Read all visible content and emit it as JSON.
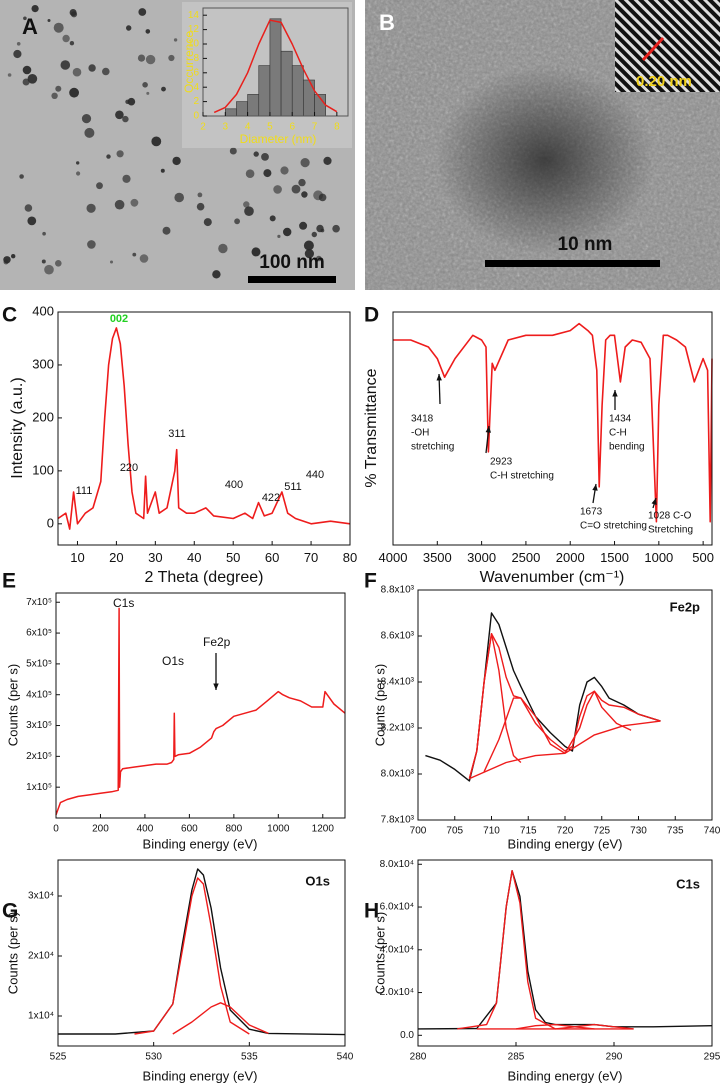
{
  "images": [
    {
      "label": "A",
      "scale_bar": "100 nm"
    },
    {
      "label": "B",
      "scale_bar": "10 nm",
      "lattice": "0.20 nm"
    }
  ],
  "chart_data": [
    {
      "type": "histogram",
      "xlabel": "Diameter (nm)",
      "ylabel": "Occurrence",
      "bins": [
        3,
        3.5,
        4,
        4.5,
        5,
        5.5,
        6,
        6.5,
        7,
        7.5
      ],
      "counts": [
        1,
        2,
        3,
        7,
        13.5,
        9,
        7,
        5,
        3
      ],
      "bar_color": "#7a7a7a",
      "series": [
        {
          "color": "#e8201c",
          "x": [
            2.5,
            3,
            3.5,
            4,
            4.5,
            5,
            5.5,
            6,
            6.5,
            7,
            7.5,
            8
          ],
          "values": [
            0.5,
            1.2,
            3,
            6,
            10,
            13.3,
            13,
            10,
            6.5,
            3.5,
            1.5,
            0.6
          ]
        }
      ],
      "xlim": [
        2,
        8.5
      ],
      "xticks": [
        2,
        3,
        4,
        5,
        6,
        7,
        8
      ],
      "ylim": [
        0,
        15
      ],
      "yticks": [
        0,
        2,
        4,
        6,
        8,
        10,
        12,
        14
      ]
    },
    {
      "type": "line",
      "panel_label": "C",
      "xlabel": "2 Theta (degree)",
      "ylabel": "Intensity (a.u.)",
      "series": [
        {
          "color": "#ee1c1c",
          "x": [
            5,
            7,
            8,
            9,
            10,
            12,
            14,
            16,
            17,
            18,
            19,
            20,
            21,
            22,
            23,
            24,
            25,
            26,
            27,
            27.5,
            28,
            30,
            31,
            33,
            35,
            35.5,
            36,
            38,
            40,
            43,
            45,
            50,
            53,
            55,
            56.5,
            58,
            60,
            62.5,
            64,
            66,
            70,
            75,
            80
          ],
          "values": [
            10,
            20,
            -10,
            60,
            0,
            20,
            30,
            80,
            200,
            300,
            350,
            370,
            340,
            260,
            150,
            60,
            20,
            15,
            10,
            90,
            20,
            60,
            20,
            30,
            100,
            140,
            30,
            20,
            20,
            30,
            15,
            10,
            20,
            10,
            40,
            15,
            20,
            60,
            20,
            10,
            0,
            5,
            0
          ]
        }
      ],
      "annotations": [
        {
          "lines": [
            "002"
          ],
          "color": "#22d022"
        },
        {
          "lines": [
            "111"
          ]
        },
        {
          "lines": [
            "220"
          ]
        },
        {
          "lines": [
            "311"
          ]
        },
        {
          "lines": [
            "400"
          ]
        },
        {
          "lines": [
            "422"
          ]
        },
        {
          "lines": [
            "511"
          ]
        },
        {
          "lines": [
            "440"
          ]
        }
      ],
      "xlim": [
        5,
        80
      ],
      "xticks": [
        10,
        20,
        30,
        40,
        50,
        60,
        70,
        80
      ],
      "ylim": [
        -40,
        400
      ],
      "yticks": [
        0,
        100,
        200,
        300,
        400
      ]
    },
    {
      "type": "line",
      "panel_label": "D",
      "xlabel": "Wavenumber (cm⁻¹)",
      "ylabel": "% Transmittance",
      "series": [
        {
          "color": "#ee1c1c",
          "x": [
            4000,
            3800,
            3600,
            3500,
            3418,
            3300,
            3100,
            3000,
            2950,
            2923,
            2880,
            2850,
            2700,
            2500,
            2200,
            2000,
            1900,
            1800,
            1750,
            1700,
            1673,
            1640,
            1600,
            1550,
            1500,
            1434,
            1380,
            1300,
            1200,
            1100,
            1028,
            1000,
            950,
            900,
            800,
            700,
            600,
            500,
            450,
            420,
            400
          ],
          "values": [
            88,
            88,
            85,
            80,
            72,
            80,
            90,
            88,
            85,
            40,
            78,
            75,
            88,
            90,
            90,
            92,
            95,
            92,
            90,
            75,
            25,
            60,
            88,
            90,
            90,
            70,
            85,
            88,
            87,
            80,
            10,
            60,
            90,
            90,
            88,
            85,
            70,
            80,
            75,
            10,
            80
          ]
        }
      ],
      "annotations": [
        {
          "lines": [
            "3418",
            "-OH",
            "stretching"
          ]
        },
        {
          "lines": [
            "2923",
            "C-H stretching"
          ]
        },
        {
          "lines": [
            "1673",
            "C=O stretching"
          ]
        },
        {
          "lines": [
            "1434",
            "C-H",
            "bending"
          ]
        },
        {
          "lines": [
            "1028 C-O",
            "Stretching"
          ]
        }
      ],
      "xlim": [
        4000,
        400
      ],
      "xticks": [
        4000,
        3500,
        3000,
        2500,
        2000,
        1500,
        1000,
        500
      ],
      "ylim": [
        0,
        100
      ]
    },
    {
      "type": "line",
      "panel_label": "E",
      "xlabel": "Binding energy (eV)",
      "ylabel": "Counts (per s)",
      "series": [
        {
          "color": "#ee1c1c",
          "x": [
            0,
            20,
            50,
            100,
            150,
            200,
            250,
            280,
            284,
            286,
            290,
            300,
            350,
            400,
            450,
            500,
            520,
            530,
            532,
            535,
            550,
            600,
            650,
            700,
            710,
            720,
            750,
            800,
            850,
            900,
            950,
            1000,
            1020,
            1050,
            1100,
            1150,
            1200,
            1210,
            1220,
            1250,
            1300
          ],
          "values": [
            10000,
            50000,
            60000,
            70000,
            75000,
            80000,
            85000,
            90000,
            680000,
            100000,
            150000,
            160000,
            165000,
            170000,
            175000,
            175000,
            180000,
            190000,
            340000,
            200000,
            205000,
            210000,
            230000,
            260000,
            280000,
            290000,
            300000,
            330000,
            340000,
            350000,
            380000,
            410000,
            400000,
            390000,
            380000,
            360000,
            360000,
            410000,
            400000,
            370000,
            340000
          ]
        }
      ],
      "annotations": [
        {
          "lines": [
            "C1s"
          ]
        },
        {
          "lines": [
            "O1s"
          ]
        },
        {
          "lines": [
            "Fe2p"
          ]
        }
      ],
      "xlim": [
        0,
        1300
      ],
      "xticks": [
        0,
        200,
        400,
        600,
        800,
        1000,
        1200
      ],
      "ylim": [
        0,
        730000
      ],
      "yticks": [
        {
          "value": 100000,
          "label": "1x10⁵"
        },
        {
          "value": 200000,
          "label": "2x10⁵"
        },
        {
          "value": 300000,
          "label": "3x10⁵"
        },
        {
          "value": 400000,
          "label": "4x10⁵"
        },
        {
          "value": 500000,
          "label": "5x10⁵"
        },
        {
          "value": 600000,
          "label": "6x10⁵"
        },
        {
          "value": 700000,
          "label": "7x10⁵"
        }
      ]
    },
    {
      "type": "line",
      "panel_label": "F",
      "title": "Fe2p",
      "xlabel": "Binding energy (eV)",
      "ylabel": "Counts (per s)",
      "series": [
        {
          "color": "#111111",
          "x": [
            701,
            703,
            705,
            707,
            708,
            709,
            710,
            711,
            712,
            713,
            714,
            716,
            718,
            720,
            721,
            722,
            723,
            724,
            725,
            726,
            728,
            730,
            733
          ],
          "values": [
            8080,
            8060,
            8020,
            7970,
            8100,
            8400,
            8700,
            8650,
            8550,
            8450,
            8380,
            8250,
            8180,
            8120,
            8100,
            8300,
            8400,
            8420,
            8380,
            8330,
            8300,
            8260,
            8230
          ]
        },
        {
          "color": "#ee1c1c",
          "x": [
            707,
            708,
            709,
            710,
            711,
            712,
            713,
            714,
            716,
            718,
            720,
            721,
            722,
            723,
            724,
            725,
            726,
            728,
            730,
            733
          ],
          "values": [
            7980,
            8100,
            8400,
            8610,
            8550,
            8420,
            8340,
            8330,
            8220,
            8150,
            8100,
            8120,
            8250,
            8340,
            8360,
            8320,
            8300,
            8290,
            8260,
            8230
          ]
        },
        {
          "color": "#ee1c1c",
          "x": [
            707,
            712,
            716,
            720,
            724,
            728,
            733
          ],
          "values": [
            7980,
            8050,
            8080,
            8090,
            8170,
            8210,
            8230
          ]
        },
        {
          "color": "#ee1c1c",
          "x": [
            707,
            708,
            709,
            710,
            711,
            712,
            713,
            714
          ],
          "values": [
            7980,
            8100,
            8400,
            8610,
            8450,
            8200,
            8080,
            8050
          ]
        },
        {
          "color": "#ee1c1c",
          "x": [
            709,
            711,
            713,
            714,
            716,
            718,
            720
          ],
          "values": [
            8010,
            8150,
            8330,
            8330,
            8250,
            8130,
            8090
          ]
        },
        {
          "color": "#ee1c1c",
          "x": [
            720,
            722,
            723,
            724,
            725,
            727,
            729
          ],
          "values": [
            8090,
            8200,
            8300,
            8360,
            8290,
            8220,
            8190
          ]
        }
      ],
      "xlim": [
        700,
        740
      ],
      "xticks": [
        700,
        705,
        710,
        715,
        720,
        725,
        730,
        735,
        740
      ],
      "ylim": [
        7800,
        8800
      ],
      "yticks": [
        {
          "value": 7800,
          "label": "7.8x10³"
        },
        {
          "value": 8000,
          "label": "8.0x10³"
        },
        {
          "value": 8200,
          "label": "8.2x10³"
        },
        {
          "value": 8400,
          "label": "8.4x10³"
        },
        {
          "value": 8600,
          "label": "8.6x10³"
        },
        {
          "value": 8800,
          "label": "8.8x10³"
        }
      ]
    },
    {
      "type": "line",
      "panel_label": "G",
      "title": "O1s",
      "xlabel": "Binding energy (eV)",
      "ylabel": "Counts (per s)",
      "series": [
        {
          "color": "#111111",
          "x": [
            525,
            528,
            530,
            531,
            531.5,
            532,
            532.3,
            532.6,
            533,
            533.5,
            534,
            535,
            536,
            540
          ],
          "values": [
            7000,
            7000,
            7500,
            12000,
            22000,
            31000,
            34500,
            33500,
            28000,
            18000,
            11000,
            7800,
            7100,
            6900
          ]
        },
        {
          "color": "#ee1c1c",
          "x": [
            529,
            530,
            531,
            531.5,
            532,
            532.3,
            532.6,
            533,
            533.5,
            534,
            535
          ],
          "values": [
            7000,
            7500,
            12000,
            21000,
            30000,
            33000,
            32000,
            25000,
            15000,
            9000,
            7000
          ]
        },
        {
          "color": "#ee1c1c",
          "x": [
            531,
            532,
            533,
            533.5,
            534,
            535,
            536
          ],
          "values": [
            7000,
            9000,
            11500,
            12200,
            11500,
            8500,
            7100
          ]
        }
      ],
      "xlim": [
        525,
        540
      ],
      "xticks": [
        525,
        530,
        535,
        540
      ],
      "ylim": [
        5000,
        36000
      ],
      "yticks": [
        {
          "value": 10000,
          "label": "1x10⁴"
        },
        {
          "value": 20000,
          "label": "2x10⁴"
        },
        {
          "value": 30000,
          "label": "3x10⁴"
        }
      ]
    },
    {
      "type": "line",
      "panel_label": "H",
      "title": "C1s",
      "xlabel": "Binding energy (eV)",
      "ylabel": "Counts (per s)",
      "series": [
        {
          "color": "#111111",
          "x": [
            280,
            283,
            284,
            284.5,
            284.8,
            285.2,
            285.6,
            286,
            286.5,
            287,
            288,
            289,
            290,
            292,
            295
          ],
          "values": [
            3000,
            3200,
            15000,
            60000,
            77000,
            65000,
            30000,
            12000,
            6000,
            5000,
            5000,
            5000,
            4000,
            4000,
            4500
          ]
        },
        {
          "color": "#ee1c1c",
          "x": [
            282,
            283.5,
            284,
            284.5,
            284.8,
            285.2,
            285.6,
            286,
            287
          ],
          "values": [
            3000,
            5000,
            15000,
            60000,
            77000,
            62000,
            25000,
            8000,
            3000
          ]
        },
        {
          "color": "#ee1c1c",
          "x": [
            285,
            286,
            287,
            288,
            289
          ],
          "values": [
            3000,
            4500,
            5000,
            4000,
            3000
          ]
        },
        {
          "color": "#ee1c1c",
          "x": [
            287,
            288,
            289,
            290,
            291
          ],
          "values": [
            3000,
            4000,
            5000,
            4000,
            3000
          ]
        },
        {
          "color": "#ee1c1c",
          "x": [
            283,
            291
          ],
          "values": [
            3000,
            3000
          ]
        }
      ],
      "xlim": [
        280,
        295
      ],
      "xticks": [
        280,
        285,
        290,
        295
      ],
      "ylim": [
        -5000,
        82000
      ],
      "yticks": [
        {
          "value": 0,
          "label": "0.0"
        },
        {
          "value": 20000,
          "label": "2.0x10⁴"
        },
        {
          "value": 40000,
          "label": "4.0x10⁴"
        },
        {
          "value": 60000,
          "label": "6.0x10⁴"
        },
        {
          "value": 80000,
          "label": "8.0x10⁴"
        }
      ]
    }
  ]
}
